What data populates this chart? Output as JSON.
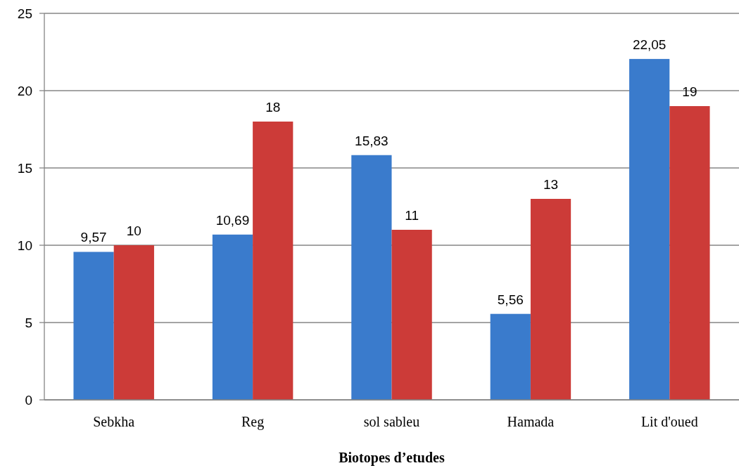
{
  "chart_data": {
    "type": "bar",
    "xlabel": "Biotopes d’etudes",
    "categories": [
      "Sebkha",
      "Reg",
      "sol sableu",
      "Hamada",
      "Lit d'oued"
    ],
    "series": [
      {
        "color": "#3a7bcc",
        "values": [
          9.57,
          10.69,
          15.83,
          5.56,
          22.05
        ],
        "value_labels": [
          "9,57",
          "10,69",
          "15,83",
          "5,56",
          "22,05"
        ]
      },
      {
        "color": "#cc3b38",
        "values": [
          10,
          18,
          11,
          13,
          19
        ],
        "value_labels": [
          "10",
          "18",
          "11",
          "13",
          "19"
        ]
      }
    ],
    "ylim": [
      0,
      25
    ],
    "yticks": [
      0,
      5,
      10,
      15,
      20,
      25
    ],
    "grid": "y"
  }
}
